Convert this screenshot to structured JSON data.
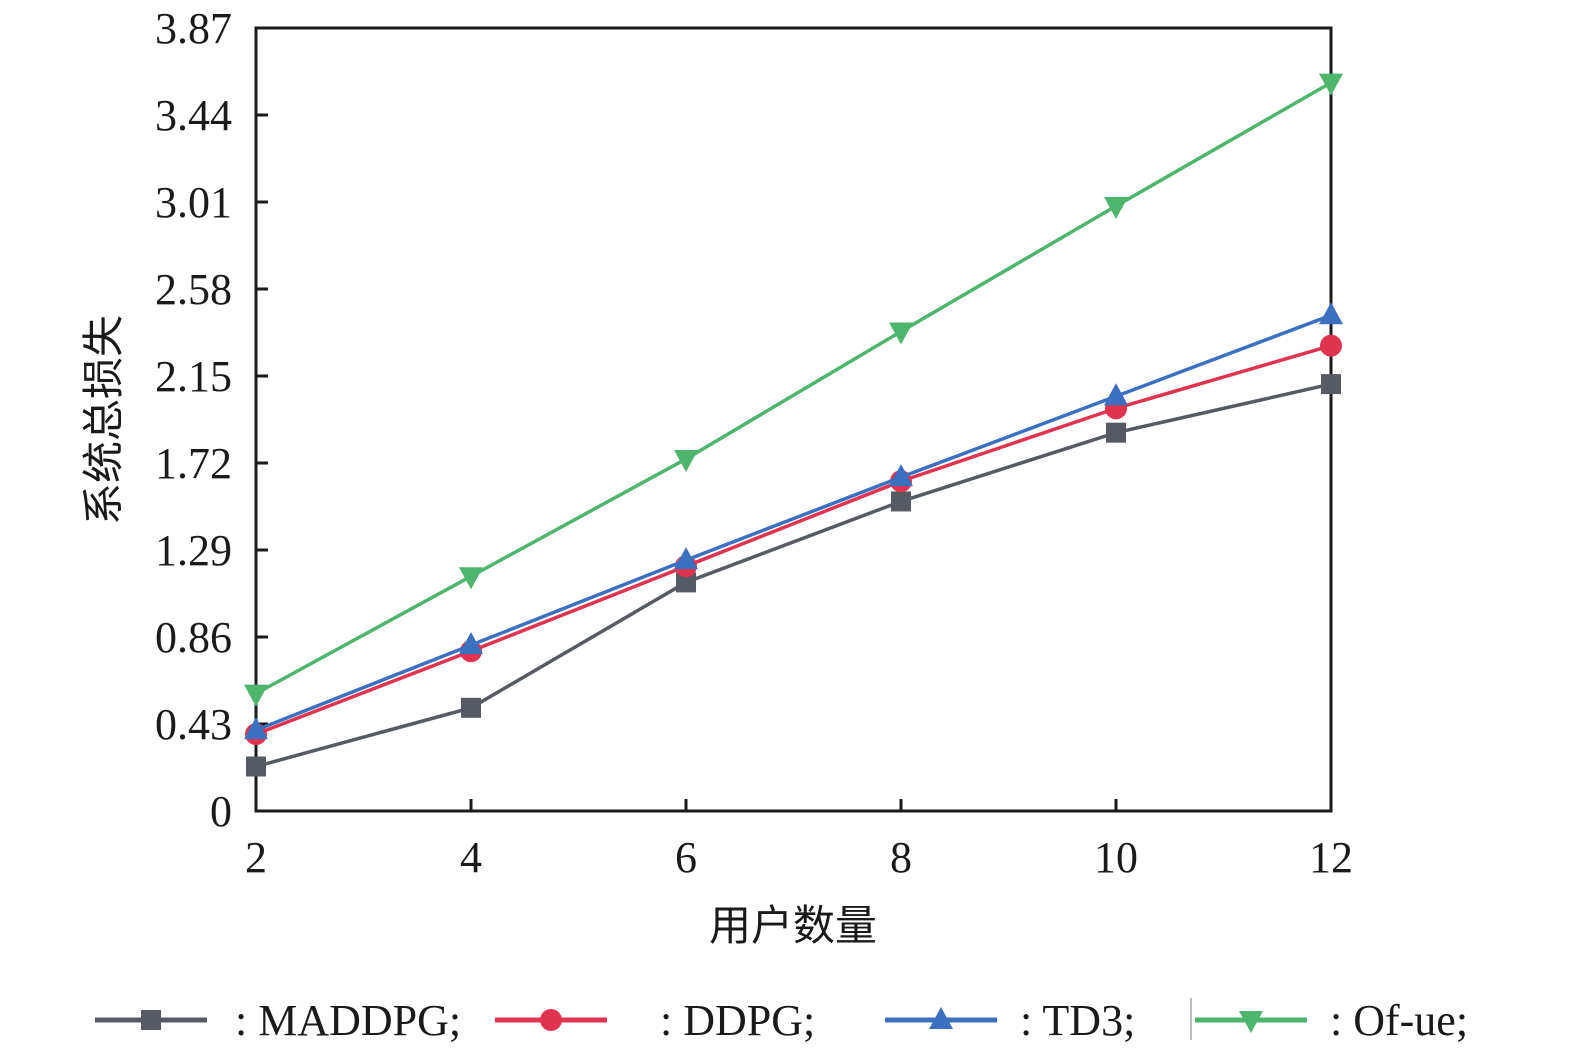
{
  "chart_data": {
    "type": "line",
    "title": "",
    "xlabel": "用户数量",
    "ylabel": "系统总损失",
    "x": [
      2,
      4,
      6,
      8,
      10,
      12
    ],
    "xticks": [
      "2",
      "4",
      "6",
      "8",
      "10",
      "12"
    ],
    "yticks": [
      "0",
      "0.43",
      "0.86",
      "1.29",
      "1.72",
      "2.15",
      "2.58",
      "3.01",
      "3.44",
      "3.87"
    ],
    "xlim": [
      2,
      12
    ],
    "ylim": [
      0,
      3.87
    ],
    "grid": false,
    "legend_position": "bottom",
    "series": [
      {
        "name": "MADDPG",
        "legend_label": ": MADDPG;",
        "color": "#555a63",
        "marker": "square",
        "values": [
          0.22,
          0.51,
          1.13,
          1.53,
          1.87,
          2.11
        ]
      },
      {
        "name": "DDPG",
        "legend_label": ": DDPG;",
        "color": "#e0334f",
        "marker": "circle",
        "values": [
          0.38,
          0.79,
          1.21,
          1.63,
          1.99,
          2.3
        ]
      },
      {
        "name": "TD3",
        "legend_label": ": TD3;",
        "color": "#3b6fc0",
        "marker": "triangle-up",
        "values": [
          0.4,
          0.82,
          1.24,
          1.65,
          2.05,
          2.45
        ]
      },
      {
        "name": "Of-ue",
        "legend_label": ": Of-ue;",
        "color": "#4db56c",
        "marker": "triangle-down",
        "values": [
          0.58,
          1.16,
          1.74,
          2.37,
          2.99,
          3.6
        ]
      }
    ]
  }
}
